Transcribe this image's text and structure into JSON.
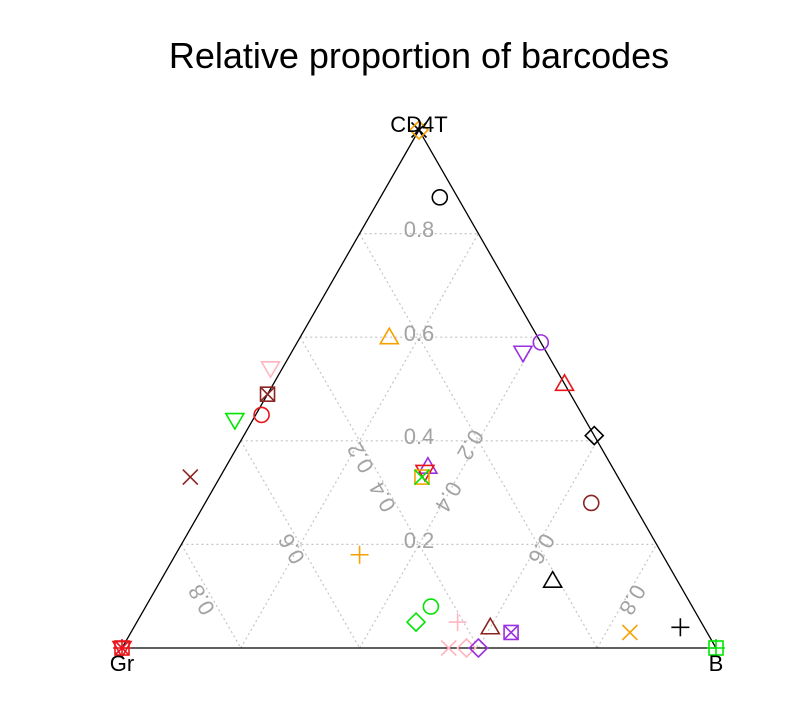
{
  "chart_data": {
    "type": "ternary-scatter",
    "title": "Relative proportion of barcodes",
    "vertices": {
      "top": "CD4T",
      "left": "Gr",
      "right": "B"
    },
    "grid": true,
    "tick_values": [
      0.2,
      0.4,
      0.6,
      0.8
    ],
    "tick_labels": {
      "top_axis": [
        "0.2",
        "0.4",
        "0.6",
        "0.8"
      ],
      "left_axis": [
        "0.2",
        "0.4",
        "0.6",
        "0.8"
      ],
      "right_axis": [
        "0.2",
        "0.4",
        "0.6",
        "0.8"
      ]
    },
    "colors": {
      "black": "#000000",
      "red": "#e8141a",
      "green": "#00e600",
      "orange": "#f5a200",
      "purple": "#9b30e0",
      "pink": "#ffb6c1",
      "brown": "#8b2323"
    },
    "points": [
      {
        "gr": 0.0,
        "cd4t": 1.0,
        "b": 0.0,
        "shape": "x",
        "color": "#000000"
      },
      {
        "gr": 0.0,
        "cd4t": 1.0,
        "b": 0.0,
        "shape": "diamond",
        "color": "#f5a200"
      },
      {
        "gr": 0.03,
        "cd4t": 0.87,
        "b": 0.1,
        "shape": "circle",
        "color": "#000000"
      },
      {
        "gr": 0.25,
        "cd4t": 0.6,
        "b": 0.15,
        "shape": "triangle",
        "color": "#f5a200"
      },
      {
        "gr": 0.0,
        "cd4t": 0.59,
        "b": 0.41,
        "shape": "circle",
        "color": "#9b30e0"
      },
      {
        "gr": 0.04,
        "cd4t": 0.57,
        "b": 0.39,
        "shape": "triangle-down",
        "color": "#9b30e0"
      },
      {
        "gr": 0.0,
        "cd4t": 0.51,
        "b": 0.49,
        "shape": "triangle",
        "color": "#e8141a"
      },
      {
        "gr": 0.48,
        "cd4t": 0.54,
        "b": -0.02,
        "shape": "triangle-down",
        "color": "#ffb6c1"
      },
      {
        "gr": 0.51,
        "cd4t": 0.49,
        "b": 0.0,
        "shape": "square-x",
        "color": "#8b2323"
      },
      {
        "gr": 0.54,
        "cd4t": 0.45,
        "b": 0.01,
        "shape": "circle",
        "color": "#e8141a"
      },
      {
        "gr": 0.59,
        "cd4t": 0.44,
        "b": -0.03,
        "shape": "triangle-down",
        "color": "#00e600"
      },
      {
        "gr": 0.0,
        "cd4t": 0.41,
        "b": 0.59,
        "shape": "diamond",
        "color": "#000000"
      },
      {
        "gr": 0.31,
        "cd4t": 0.35,
        "b": 0.34,
        "shape": "triangle",
        "color": "#9b30e0"
      },
      {
        "gr": 0.32,
        "cd4t": 0.34,
        "b": 0.34,
        "shape": "triangle-down",
        "color": "#e8141a"
      },
      {
        "gr": 0.33,
        "cd4t": 0.33,
        "b": 0.34,
        "shape": "square",
        "color": "#f5a200"
      },
      {
        "gr": 0.33,
        "cd4t": 0.33,
        "b": 0.34,
        "shape": "x",
        "color": "#00e600"
      },
      {
        "gr": 0.72,
        "cd4t": 0.33,
        "b": -0.05,
        "shape": "x",
        "color": "#8b2323"
      },
      {
        "gr": 0.07,
        "cd4t": 0.28,
        "b": 0.65,
        "shape": "circle",
        "color": "#8b2323"
      },
      {
        "gr": 0.51,
        "cd4t": 0.18,
        "b": 0.31,
        "shape": "plus",
        "color": "#f5a200"
      },
      {
        "gr": 0.21,
        "cd4t": 0.13,
        "b": 0.66,
        "shape": "triangle",
        "color": "#000000"
      },
      {
        "gr": 0.44,
        "cd4t": 0.08,
        "b": 0.48,
        "shape": "circle",
        "color": "#00e600"
      },
      {
        "gr": 0.48,
        "cd4t": 0.05,
        "b": 0.47,
        "shape": "diamond",
        "color": "#00e600"
      },
      {
        "gr": 0.41,
        "cd4t": 0.05,
        "b": 0.54,
        "shape": "plus",
        "color": "#ffb6c1"
      },
      {
        "gr": 0.45,
        "cd4t": 0.0,
        "b": 0.55,
        "shape": "x",
        "color": "#ffb6c1"
      },
      {
        "gr": 0.42,
        "cd4t": 0.0,
        "b": 0.58,
        "shape": "diamond",
        "color": "#ffb6c1"
      },
      {
        "gr": 0.4,
        "cd4t": 0.0,
        "b": 0.6,
        "shape": "diamond",
        "color": "#9b30e0"
      },
      {
        "gr": 0.36,
        "cd4t": 0.04,
        "b": 0.6,
        "shape": "triangle",
        "color": "#8b2323"
      },
      {
        "gr": 0.33,
        "cd4t": 0.03,
        "b": 0.64,
        "shape": "square-x",
        "color": "#9b30e0"
      },
      {
        "gr": 0.13,
        "cd4t": 0.03,
        "b": 0.84,
        "shape": "x",
        "color": "#f5a200"
      },
      {
        "gr": 0.04,
        "cd4t": 0.04,
        "b": 0.92,
        "shape": "plus",
        "color": "#000000"
      },
      {
        "gr": 0.0,
        "cd4t": 0.0,
        "b": 1.0,
        "shape": "square",
        "color": "#00e600"
      },
      {
        "gr": 0.0,
        "cd4t": 0.0,
        "b": 1.0,
        "shape": "plus",
        "color": "#00e600"
      },
      {
        "gr": 1.0,
        "cd4t": 0.0,
        "b": 0.0,
        "shape": "square-x",
        "color": "#e8141a"
      },
      {
        "gr": 1.0,
        "cd4t": 0.0,
        "b": 0.0,
        "shape": "triangle-down",
        "color": "#e8141a"
      },
      {
        "gr": 1.0,
        "cd4t": 0.0,
        "b": 0.0,
        "shape": "plus",
        "color": "#e8141a"
      }
    ]
  }
}
